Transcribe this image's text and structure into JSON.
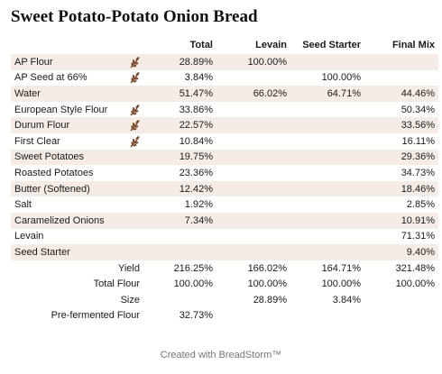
{
  "title": "Sweet Potato-Potato Onion Bread",
  "columns": [
    "Total",
    "Levain",
    "Seed Starter",
    "Final Mix"
  ],
  "rows": [
    {
      "name": "AP Flour",
      "flour": true,
      "shaded": true,
      "total": "28.89%",
      "levain": "100.00%",
      "seed": "",
      "final": ""
    },
    {
      "name": "AP Seed at 66%",
      "flour": true,
      "shaded": false,
      "total": "3.84%",
      "levain": "",
      "seed": "100.00%",
      "final": ""
    },
    {
      "name": "Water",
      "flour": false,
      "shaded": true,
      "total": "51.47%",
      "levain": "66.02%",
      "seed": "64.71%",
      "final": "44.46%"
    },
    {
      "name": "European Style Flour",
      "flour": true,
      "shaded": false,
      "total": "33.86%",
      "levain": "",
      "seed": "",
      "final": "50.34%"
    },
    {
      "name": "Durum Flour",
      "flour": true,
      "shaded": true,
      "total": "22.57%",
      "levain": "",
      "seed": "",
      "final": "33.56%"
    },
    {
      "name": "First Clear",
      "flour": true,
      "shaded": false,
      "total": "10.84%",
      "levain": "",
      "seed": "",
      "final": "16.11%"
    },
    {
      "name": "Sweet Potatoes",
      "flour": false,
      "shaded": true,
      "total": "19.75%",
      "levain": "",
      "seed": "",
      "final": "29.36%"
    },
    {
      "name": "Roasted Potatoes",
      "flour": false,
      "shaded": false,
      "total": "23.36%",
      "levain": "",
      "seed": "",
      "final": "34.73%"
    },
    {
      "name": "Butter (Softened)",
      "flour": false,
      "shaded": true,
      "total": "12.42%",
      "levain": "",
      "seed": "",
      "final": "18.46%"
    },
    {
      "name": "Salt",
      "flour": false,
      "shaded": false,
      "total": "1.92%",
      "levain": "",
      "seed": "",
      "final": "2.85%"
    },
    {
      "name": "Caramelized Onions",
      "flour": false,
      "shaded": true,
      "total": "7.34%",
      "levain": "",
      "seed": "",
      "final": "10.91%"
    },
    {
      "name": "Levain",
      "flour": false,
      "shaded": false,
      "total": "",
      "levain": "",
      "seed": "",
      "final": "71.31%"
    },
    {
      "name": "Seed Starter",
      "flour": false,
      "shaded": true,
      "total": "",
      "levain": "",
      "seed": "",
      "final": "9.40%"
    }
  ],
  "summary": [
    {
      "label": "Yield",
      "total": "216.25%",
      "levain": "166.02%",
      "seed": "164.71%",
      "final": "321.48%"
    },
    {
      "label": "Total Flour",
      "total": "100.00%",
      "levain": "100.00%",
      "seed": "100.00%",
      "final": "100.00%"
    },
    {
      "label": "Size",
      "total": "",
      "levain": "28.89%",
      "seed": "3.84%",
      "final": ""
    },
    {
      "label": "Pre-fermented Flour",
      "total": "32.73%",
      "levain": "",
      "seed": "",
      "final": ""
    }
  ],
  "footer": "Created with BreadStorm™",
  "icons": {
    "flour": "wheat-icon"
  },
  "colors": {
    "shade": "#f5ece5",
    "wheat": "#7a4a2a"
  }
}
